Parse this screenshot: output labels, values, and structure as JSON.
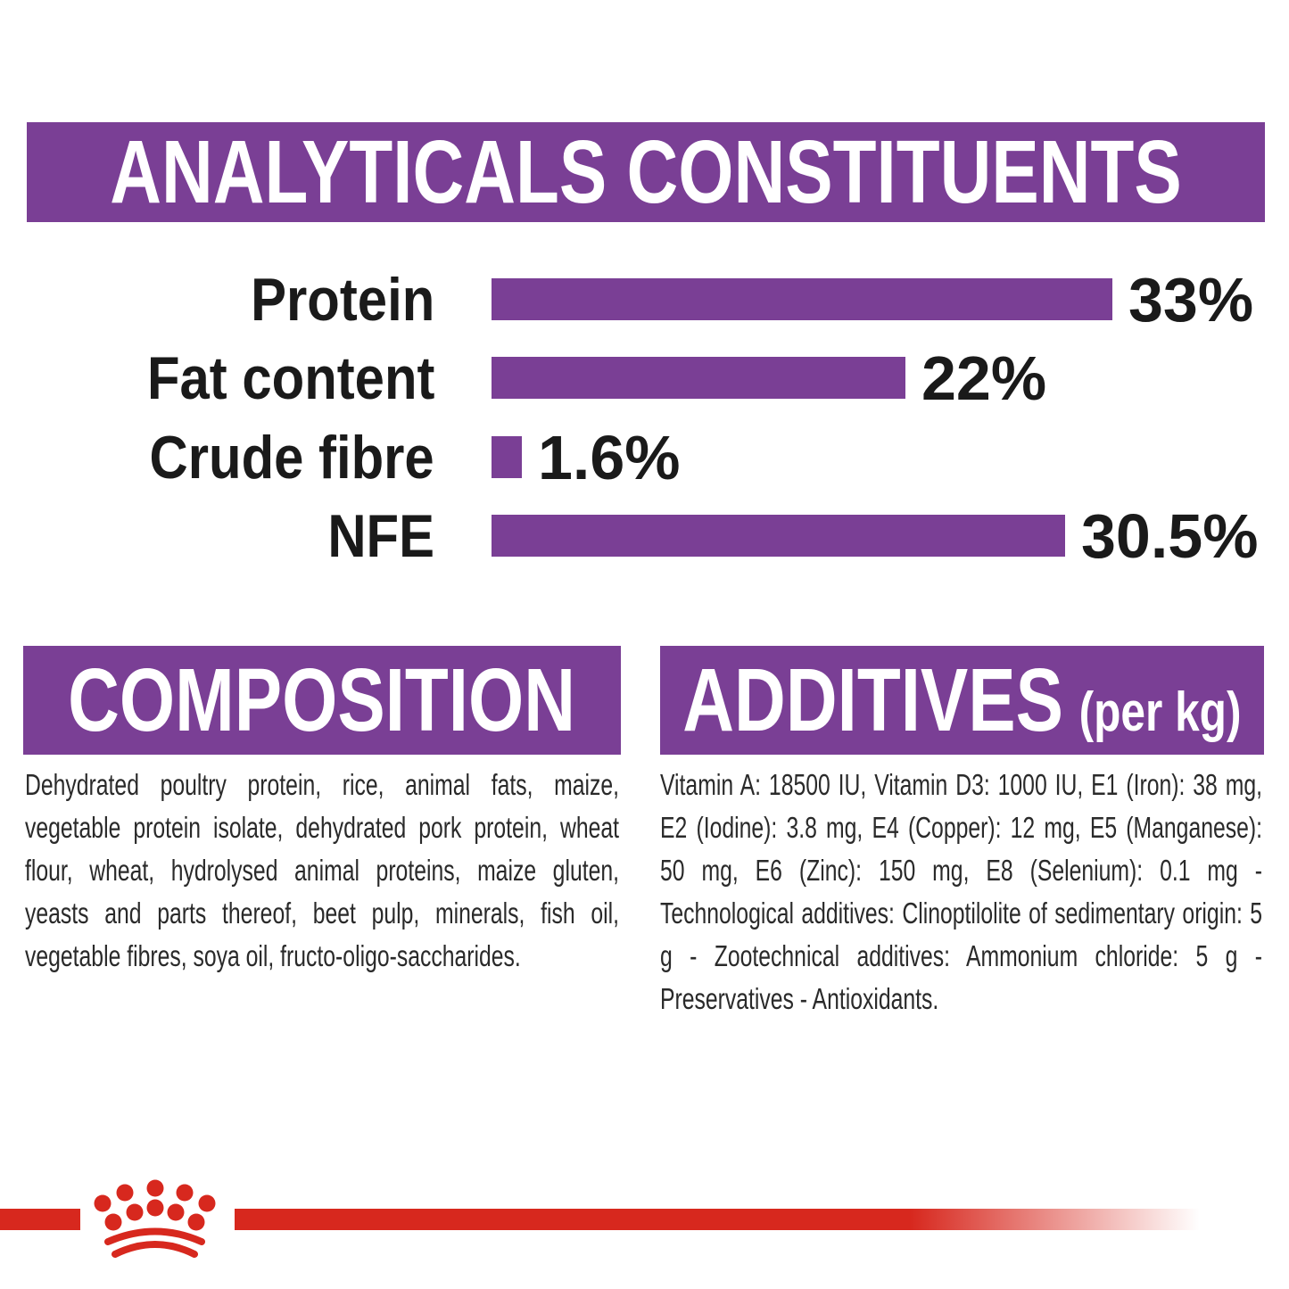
{
  "header": {
    "title": "ANALYTICALS CONSTITUENTS"
  },
  "chart_data": {
    "type": "bar",
    "orientation": "horizontal",
    "title": "ANALYTICALS CONSTITUENTS",
    "categories": [
      "Protein",
      "Fat content",
      "Crude fibre",
      "NFE"
    ],
    "values": [
      33,
      22,
      1.6,
      30.5
    ],
    "value_labels": [
      "33%",
      "22%",
      "1.6%",
      "30.5%"
    ],
    "unit": "percent",
    "xlim": [
      0,
      33
    ],
    "grid": false,
    "legend": false,
    "bar_color": "#7A3F95",
    "label_color": "#1a1a1a"
  },
  "composition": {
    "title": "COMPOSITION",
    "body": "Dehydrated poultry protein, rice, animal fats, maize, vegetable protein isolate,  dehydrated pork protein, wheat flour, wheat, hydrolysed animal proteins, maize gluten, yeasts and parts thereof, beet pulp, minerals, fish oil, vegetable fibres, soya oil, fructo-oligo-saccharides."
  },
  "additives": {
    "title": "ADDITIVES",
    "title_suffix": "(per kg)",
    "body": "Vitamin A: 18500 IU, Vitamin D3: 1000 IU, E1 (Iron): 38 mg, E2 (Iodine): 3.8 mg, E4 (Copper): 12 mg, E5 (Manganese): 50 mg, E6 (Zinc): 150 mg, E8 (Selenium): 0.1 mg -Technological additives: Clinoptilolite of sedimentary origin: 5 g - Zootechnical additives: Ammonium chloride: 5 g - Preservatives - Antioxidants."
  },
  "footer": {
    "logo": "royal-canin-crown-logo"
  },
  "colors": {
    "purple": "#7A3F95",
    "red": "#D7281E",
    "text": "#1a1a1a",
    "background": "#ffffff"
  }
}
